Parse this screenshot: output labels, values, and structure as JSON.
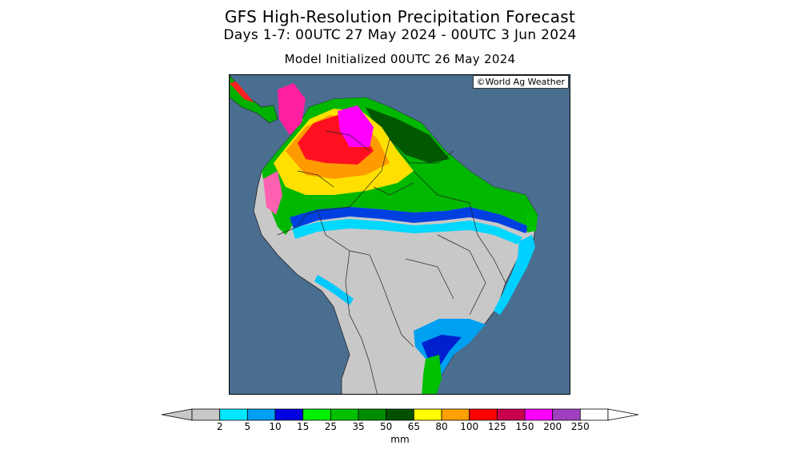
{
  "header": {
    "title": "GFS High-Resolution Precipitation Forecast",
    "period": "Days 1-7: 00UTC 27 May 2024 - 00UTC 3 Jun 2024",
    "init": "Model Initialized 00UTC 26 May 2024"
  },
  "map": {
    "credit": "©World Ag Weather",
    "ocean_color": "#4a6e90",
    "dry_land_color": "#c8c8c8"
  },
  "legend": {
    "unit": "mm",
    "ticks": [
      "2",
      "5",
      "10",
      "15",
      "25",
      "35",
      "50",
      "65",
      "80",
      "100",
      "125",
      "150",
      "200",
      "250"
    ],
    "colors": [
      "#c8c8c8",
      "#00e8ff",
      "#00a0f0",
      "#0000e0",
      "#00f000",
      "#00c000",
      "#008c00",
      "#005000",
      "#ffff00",
      "#ffa000",
      "#ff0000",
      "#c8004c",
      "#ff00ff",
      "#a040c0",
      "#ffffff"
    ]
  }
}
